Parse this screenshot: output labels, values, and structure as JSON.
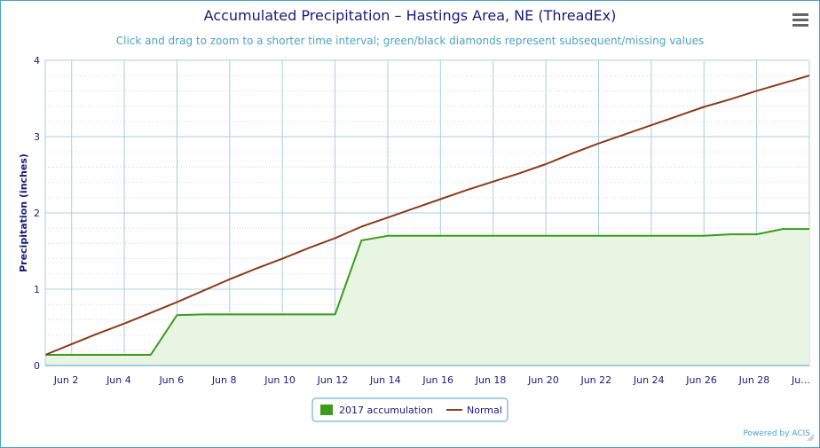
{
  "chart_data": {
    "type": "line",
    "title": "Accumulated Precipitation – Hastings Area, NE (ThreadEx)",
    "subtitle": "Click and drag to zoom to a shorter time interval; green/black diamonds represent subsequent/missing values",
    "ylabel": "Precipitation (inches)",
    "xlabel": "",
    "ylim": [
      0,
      4
    ],
    "yticks": [
      "0",
      "1",
      "2",
      "3",
      "4"
    ],
    "x_ticklabels": [
      "Jun 2",
      "Jun 4",
      "Jun 6",
      "Jun 8",
      "Jun 10",
      "Jun 12",
      "Jun 14",
      "Jun 16",
      "Jun 18",
      "Jun 20",
      "Jun 22",
      "Jun 24",
      "Jun 26",
      "Jun 28",
      "Ju..."
    ],
    "x": [
      1,
      2,
      3,
      4,
      5,
      6,
      7,
      8,
      9,
      10,
      11,
      12,
      13,
      14,
      15,
      16,
      17,
      18,
      19,
      20,
      21,
      22,
      23,
      24,
      25,
      26,
      27,
      28,
      29,
      30
    ],
    "grid": true,
    "legend_position": "bottom-center",
    "series": [
      {
        "name": "2017 accumulation",
        "color": "#3c9b1c",
        "fill": "#e8f5e3",
        "type": "area",
        "values": [
          0.14,
          0.14,
          0.14,
          0.14,
          0.14,
          0.66,
          0.67,
          0.67,
          0.67,
          0.67,
          0.67,
          0.67,
          1.64,
          1.7,
          1.7,
          1.7,
          1.7,
          1.7,
          1.7,
          1.7,
          1.7,
          1.7,
          1.7,
          1.7,
          1.7,
          1.7,
          1.72,
          1.72,
          1.79,
          1.79
        ]
      },
      {
        "name": "Normal",
        "color": "#8b3a1a",
        "type": "line",
        "values": [
          0.14,
          0.28,
          0.42,
          0.55,
          0.69,
          0.83,
          0.98,
          1.13,
          1.27,
          1.4,
          1.54,
          1.67,
          1.82,
          1.94,
          2.06,
          2.18,
          2.3,
          2.41,
          2.52,
          2.64,
          2.78,
          2.91,
          3.03,
          3.15,
          3.27,
          3.39,
          3.49,
          3.6,
          3.7,
          3.8
        ]
      }
    ]
  },
  "credit": "Powered by ACIS",
  "menu_icon": "hamburger-menu-icon"
}
